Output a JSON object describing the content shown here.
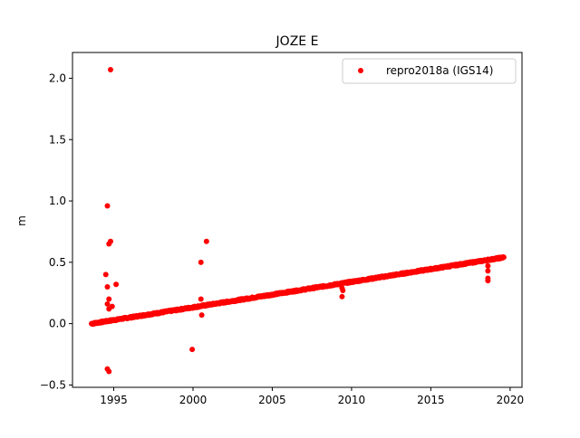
{
  "chart_data": {
    "type": "scatter",
    "title": "JOZE E",
    "xlabel": "",
    "ylabel": "m",
    "xlim": [
      1992.4,
      2020.75
    ],
    "ylim": [
      -0.519,
      2.21
    ],
    "xticks": [
      1995,
      2000,
      2005,
      2010,
      2015,
      2020
    ],
    "xtick_labels": [
      "1995",
      "2000",
      "2005",
      "2010",
      "2015",
      "2020"
    ],
    "yticks": [
      -0.5,
      0.0,
      0.5,
      1.0,
      1.5,
      2.0
    ],
    "ytick_labels": [
      "−0.5",
      "0.0",
      "0.5",
      "1.0",
      "1.5",
      "2.0"
    ],
    "grid": false,
    "legend": {
      "position": "top-right"
    },
    "series": [
      {
        "name": "repro2018a (IGS14)",
        "color": "#ff0000",
        "marker": "circle",
        "trend": {
          "x_start": 1993.6,
          "x_end": 2019.6,
          "y_start": 0.0,
          "y_end": 0.54,
          "samples_per_year": 36,
          "noise": 0.006
        },
        "outliers": [
          {
            "x": 1994.8,
            "y": 2.07
          },
          {
            "x": 1994.6,
            "y": 0.96
          },
          {
            "x": 1994.8,
            "y": 0.67
          },
          {
            "x": 1994.7,
            "y": 0.65
          },
          {
            "x": 1994.5,
            "y": 0.4
          },
          {
            "x": 1995.15,
            "y": 0.32
          },
          {
            "x": 1994.6,
            "y": 0.3
          },
          {
            "x": 1994.7,
            "y": 0.2
          },
          {
            "x": 1994.6,
            "y": 0.16
          },
          {
            "x": 1994.9,
            "y": 0.14
          },
          {
            "x": 1994.7,
            "y": 0.12
          },
          {
            "x": 1994.6,
            "y": -0.37
          },
          {
            "x": 1994.7,
            "y": -0.39
          },
          {
            "x": 1999.95,
            "y": -0.21
          },
          {
            "x": 2000.5,
            "y": 0.5
          },
          {
            "x": 2000.85,
            "y": 0.67
          },
          {
            "x": 2000.5,
            "y": 0.2
          },
          {
            "x": 2000.55,
            "y": 0.07
          },
          {
            "x": 2009.4,
            "y": 0.22
          },
          {
            "x": 2009.45,
            "y": 0.27
          },
          {
            "x": 2009.4,
            "y": 0.29
          },
          {
            "x": 2018.6,
            "y": 0.47
          },
          {
            "x": 2018.6,
            "y": 0.43
          },
          {
            "x": 2018.6,
            "y": 0.37
          },
          {
            "x": 2018.6,
            "y": 0.35
          }
        ]
      }
    ]
  }
}
